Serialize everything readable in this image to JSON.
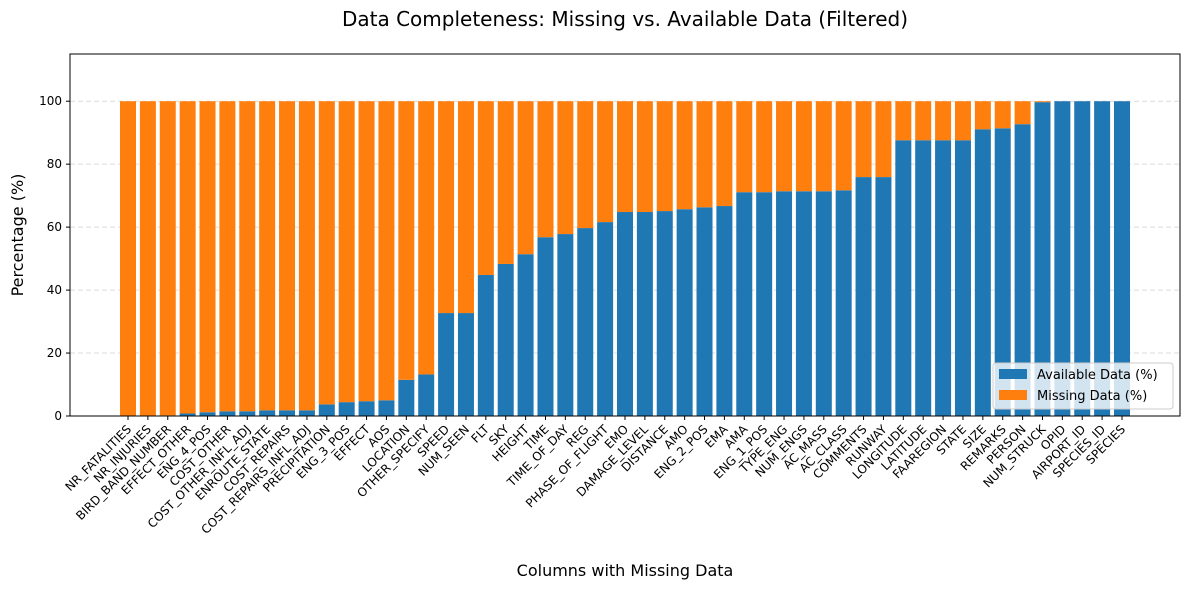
{
  "chart_data": {
    "type": "bar",
    "stacked": true,
    "title": "Data Completeness: Missing vs. Available Data (Filtered)",
    "xlabel": "Columns with Missing Data",
    "ylabel": "Percentage (%)",
    "ylim": [
      0,
      115
    ],
    "yticks": [
      0,
      20,
      40,
      60,
      80,
      100
    ],
    "grid": "y, dashed",
    "legend": "lower-right",
    "categories": [
      "NR_FATALITIES",
      "NR_INJURIES",
      "BIRD_BAND_NUMBER",
      "EFFECT_OTHER",
      "ENG_4_POS",
      "COST_OTHER",
      "COST_OTHER_INFL_ADJ",
      "ENROUTE_STATE",
      "COST_REPAIRS",
      "COST_REPAIRS_INFL_ADJ",
      "PRECIPITATION",
      "ENG_3_POS",
      "EFFECT",
      "AOS",
      "LOCATION",
      "OTHER_SPECIFY",
      "SPEED",
      "NUM_SEEN",
      "FLT",
      "SKY",
      "HEIGHT",
      "TIME",
      "TIME_OF_DAY",
      "REG",
      "PHASE_OF_FLIGHT",
      "EMO",
      "DAMAGE_LEVEL",
      "DISTANCE",
      "AMO",
      "ENG_2_POS",
      "EMA",
      "AMA",
      "ENG_1_POS",
      "TYPE_ENG",
      "NUM_ENGS",
      "AC_MASS",
      "AC_CLASS",
      "COMMENTS",
      "RUNWAY",
      "LONGITUDE",
      "LATITUDE",
      "FAAREGION",
      "STATE",
      "SIZE",
      "REMARKS",
      "PERSON",
      "NUM_STRUCK",
      "OPID",
      "AIRPORT_ID",
      "SPECIES_ID",
      "SPECIES"
    ],
    "series": [
      {
        "name": "Available Data (%)",
        "color": "#1f77b4",
        "values": [
          0,
          0,
          0.2,
          0.8,
          1.2,
          1.5,
          1.5,
          1.8,
          1.8,
          1.8,
          3.7,
          4.4,
          4.7,
          5.0,
          11.5,
          13.2,
          32.7,
          32.7,
          44.8,
          48.3,
          51.4,
          56.8,
          57.8,
          59.7,
          61.6,
          64.8,
          64.8,
          65.1,
          65.7,
          66.3,
          66.7,
          71.1,
          71.1,
          71.4,
          71.4,
          71.4,
          71.7,
          75.9,
          75.9,
          87.6,
          87.6,
          87.6,
          87.6,
          91.1,
          91.4,
          92.7,
          99.7,
          100,
          100,
          100,
          100
        ]
      },
      {
        "name": "Missing Data (%)",
        "color": "#ff7f0e",
        "values": [
          100,
          100,
          99.8,
          99.2,
          98.8,
          98.5,
          98.5,
          98.2,
          98.2,
          98.2,
          96.3,
          95.6,
          95.3,
          95.0,
          88.5,
          86.8,
          67.3,
          67.3,
          55.2,
          51.7,
          48.6,
          43.2,
          42.2,
          40.3,
          38.4,
          35.2,
          35.2,
          34.9,
          34.3,
          33.7,
          33.3,
          28.9,
          28.9,
          28.6,
          28.6,
          28.6,
          28.3,
          24.1,
          24.1,
          12.4,
          12.4,
          12.4,
          12.4,
          8.9,
          8.6,
          7.3,
          0.3,
          0,
          0,
          0,
          0
        ]
      }
    ]
  }
}
